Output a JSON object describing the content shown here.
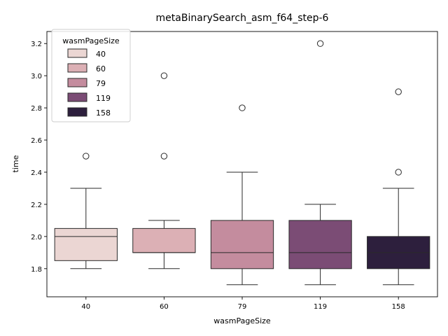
{
  "chart_data": {
    "type": "box",
    "title": "metaBinarySearch_asm_f64_step-6",
    "xlabel": "wasmPageSize",
    "ylabel": "time",
    "ylim": [
      1.625,
      3.275
    ],
    "yticks": [
      "1.8",
      "2.0",
      "2.2",
      "2.4",
      "2.6",
      "2.8",
      "3.0",
      "3.2"
    ],
    "legend": {
      "title": "wasmPageSize",
      "placement": "top-left",
      "entries": [
        "40",
        "60",
        "79",
        "119",
        "158"
      ]
    },
    "categories": [
      "40",
      "60",
      "79",
      "119",
      "158"
    ],
    "colors": [
      "#ebd6d3",
      "#dcb0b5",
      "#c48c9e",
      "#7b4c75",
      "#2d1f3d"
    ],
    "boxes": [
      {
        "q1": 1.85,
        "median": 2.0,
        "q3": 2.05,
        "whisker_low": 1.8,
        "whisker_high": 2.3,
        "outliers": [
          2.5
        ]
      },
      {
        "q1": 1.9,
        "median": 1.9,
        "q3": 2.05,
        "whisker_low": 1.8,
        "whisker_high": 2.1,
        "outliers": [
          2.5,
          3.0
        ]
      },
      {
        "q1": 1.8,
        "median": 1.9,
        "q3": 2.1,
        "whisker_low": 1.7,
        "whisker_high": 2.4,
        "outliers": [
          2.8
        ]
      },
      {
        "q1": 1.8,
        "median": 1.9,
        "q3": 2.1,
        "whisker_low": 1.7,
        "whisker_high": 2.2,
        "outliers": [
          3.2
        ]
      },
      {
        "q1": 1.8,
        "median": 1.9,
        "q3": 2.0,
        "whisker_low": 1.7,
        "whisker_high": 2.3,
        "outliers": [
          2.4,
          2.9
        ]
      }
    ]
  }
}
